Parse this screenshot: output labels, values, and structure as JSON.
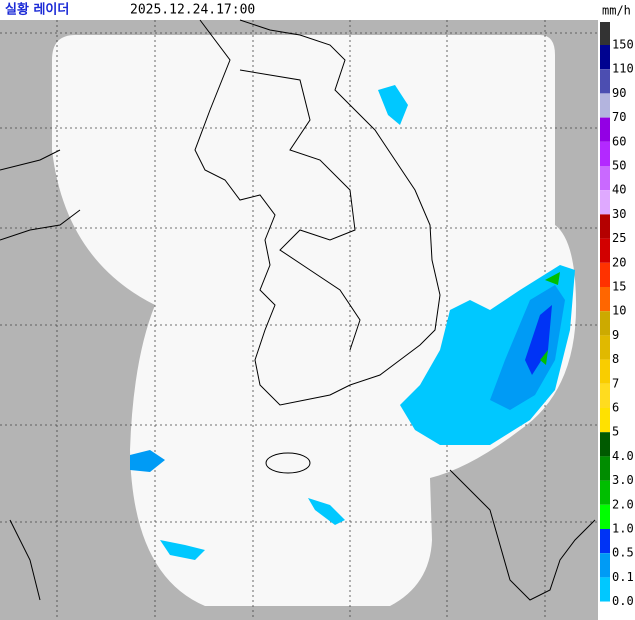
{
  "header": {
    "title": "실황 레이더",
    "time": "2025.12.24.17:00",
    "unit": "mm/h"
  },
  "legend": {
    "top_color": "#333333",
    "items": [
      {
        "label": "150",
        "color": "#000390"
      },
      {
        "label": "110",
        "color": "#4c4eb1"
      },
      {
        "label": "90",
        "color": "#b3b4de"
      },
      {
        "label": "70",
        "color": "#9300e4"
      },
      {
        "label": "60",
        "color": "#b329ff"
      },
      {
        "label": "50",
        "color": "#c969ff"
      },
      {
        "label": "40",
        "color": "#dfa9ff"
      },
      {
        "label": "30",
        "color": "#b40000"
      },
      {
        "label": "25",
        "color": "#d20000"
      },
      {
        "label": "20",
        "color": "#ff3200"
      },
      {
        "label": "15",
        "color": "#ff6600"
      },
      {
        "label": "10",
        "color": "#ccaa00"
      },
      {
        "label": "9",
        "color": "#e0b900"
      },
      {
        "label": "8",
        "color": "#f9cd00"
      },
      {
        "label": "7",
        "color": "#ffdc1f"
      },
      {
        "label": "6",
        "color": "#ffe100"
      },
      {
        "label": "5",
        "color": "#005a00"
      },
      {
        "label": "4.0",
        "color": "#008c00"
      },
      {
        "label": "3.0",
        "color": "#00be00"
      },
      {
        "label": "2.0",
        "color": "#00ff00"
      },
      {
        "label": "1.0",
        "color": "#0033f5"
      },
      {
        "label": "0.5",
        "color": "#009bf5"
      },
      {
        "label": "0.1",
        "color": "#00c8ff"
      },
      {
        "label": "0.0",
        "color": "#ffffff"
      }
    ]
  }
}
